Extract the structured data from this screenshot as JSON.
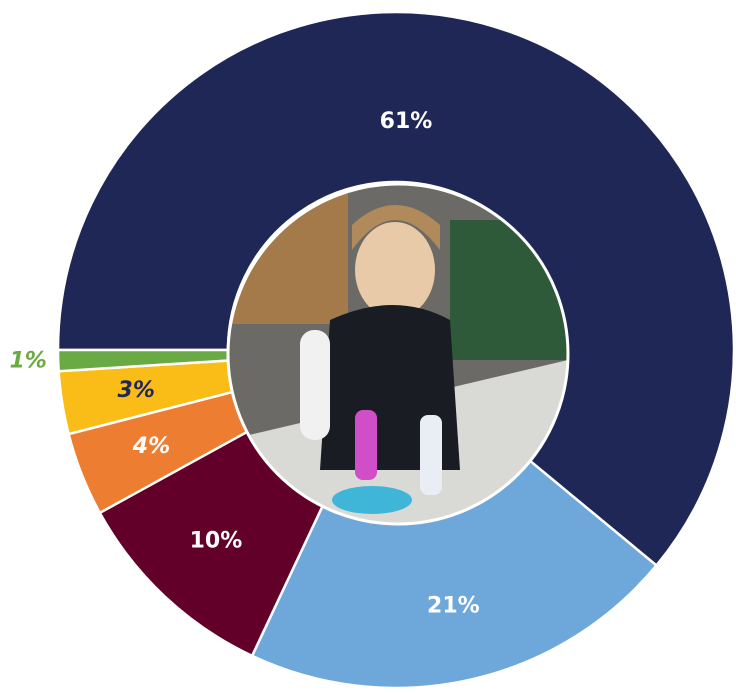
{
  "chart_data": {
    "type": "donut",
    "values": [
      61,
      21,
      10,
      4,
      3,
      1
    ],
    "value_labels": [
      "61%",
      "21%",
      "10%",
      "4%",
      "3%",
      "1%"
    ],
    "colors": [
      "#1f2756",
      "#6ea8da",
      "#63002a",
      "#ec7d31",
      "#fabd17",
      "#6aaa45"
    ]
  }
}
